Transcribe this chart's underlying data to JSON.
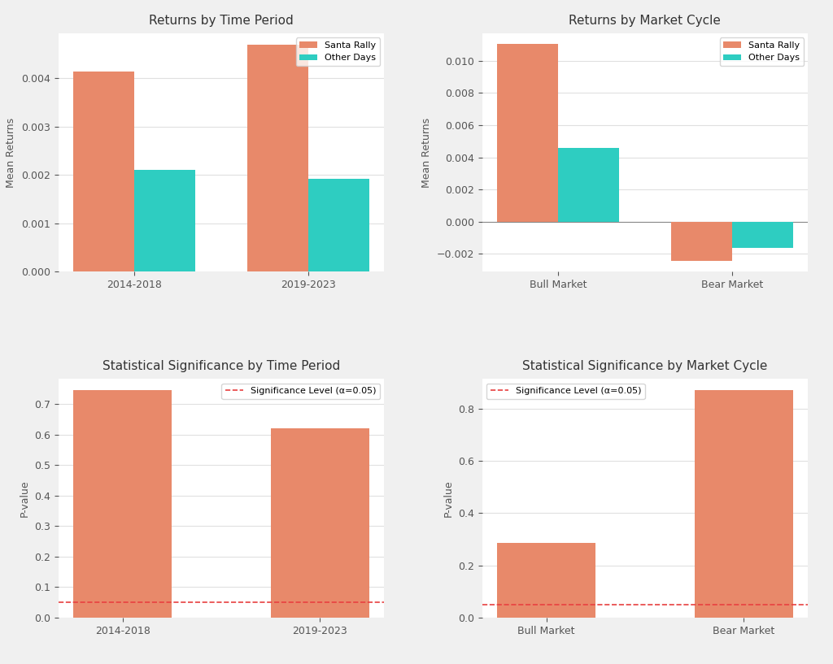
{
  "top_left": {
    "title": "Returns by Time Period",
    "categories": [
      "2014-2018",
      "2019-2023"
    ],
    "santa_rally": [
      0.00415,
      0.0047
    ],
    "other_days": [
      0.0021,
      0.00192
    ],
    "ylabel": "Mean Returns"
  },
  "top_right": {
    "title": "Returns by Market Cycle",
    "categories": [
      "Bull Market",
      "Bear Market"
    ],
    "santa_rally": [
      0.01105,
      -0.00245
    ],
    "other_days": [
      0.0046,
      -0.00165
    ],
    "ylabel": "Mean Returns"
  },
  "bottom_left": {
    "title": "Statistical Significance by Time Period",
    "categories": [
      "2014-2018",
      "2019-2023"
    ],
    "pvalues": [
      0.745,
      0.62
    ],
    "ylabel": "P-value",
    "significance_level": 0.05,
    "sig_label": "Significance Level (α=0.05)"
  },
  "bottom_right": {
    "title": "Statistical Significance by Market Cycle",
    "categories": [
      "Bull Market",
      "Bear Market"
    ],
    "pvalues": [
      0.287,
      0.87
    ],
    "ylabel": "P-value",
    "significance_level": 0.05,
    "sig_label": "Significance Level (α=0.05)"
  },
  "colors": {
    "santa_rally": "#E8896A",
    "other_days": "#2ECDC1",
    "pvalue_bar": "#E8896A",
    "sig_line": "#E84040",
    "background": "#FFFFFF",
    "grid": "#E0E0E0"
  },
  "legend": {
    "santa_rally_label": "Santa Rally",
    "other_days_label": "Other Days"
  },
  "bar_width": 0.35,
  "fig_background": "#F0F0F0"
}
